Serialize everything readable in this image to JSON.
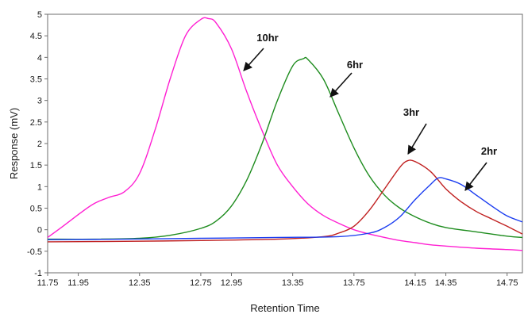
{
  "chart_data": {
    "type": "line",
    "xlabel": "Retention Time",
    "ylabel": "Response (mV)",
    "xlim": [
      11.75,
      14.85
    ],
    "ylim": [
      -1,
      5
    ],
    "x_ticks": [
      "11.75",
      "11.95",
      "12.35",
      "12.75",
      "12.95",
      "13.35",
      "13.75",
      "14.15",
      "14.35",
      "14.75"
    ],
    "x_tick_values": [
      11.75,
      11.95,
      12.35,
      12.75,
      12.95,
      13.35,
      13.75,
      14.15,
      14.35,
      14.75
    ],
    "y_ticks": [
      "-1",
      "-0.5",
      "0",
      "0.5",
      "1",
      "1.5",
      "2",
      "2.5",
      "3",
      "3.5",
      "4",
      "4.5",
      "5"
    ],
    "y_tick_values": [
      -1,
      -0.5,
      0,
      0.5,
      1,
      1.5,
      2,
      2.5,
      3,
      3.5,
      4,
      4.5,
      5
    ],
    "grid": false,
    "series": [
      {
        "name": "10hr",
        "color": "#ff1fd2",
        "x": [
          11.75,
          11.85,
          11.95,
          12.05,
          12.15,
          12.25,
          12.35,
          12.45,
          12.55,
          12.65,
          12.75,
          12.8,
          12.85,
          12.95,
          13.05,
          13.15,
          13.25,
          13.35,
          13.45,
          13.55,
          13.65,
          13.75,
          13.85,
          13.95,
          14.05,
          14.15,
          14.25,
          14.35,
          14.55,
          14.75,
          14.85
        ],
        "y": [
          -0.18,
          0.08,
          0.35,
          0.6,
          0.75,
          0.88,
          1.3,
          2.3,
          3.5,
          4.5,
          4.88,
          4.9,
          4.8,
          4.2,
          3.2,
          2.3,
          1.5,
          1.0,
          0.6,
          0.33,
          0.15,
          0.0,
          -0.1,
          -0.18,
          -0.25,
          -0.3,
          -0.35,
          -0.38,
          -0.43,
          -0.46,
          -0.48
        ]
      },
      {
        "name": "6hr",
        "color": "#1e8c1e",
        "x": [
          11.75,
          12.05,
          12.35,
          12.55,
          12.75,
          12.85,
          12.95,
          13.05,
          13.15,
          13.25,
          13.35,
          13.42,
          13.45,
          13.55,
          13.65,
          13.75,
          13.85,
          13.95,
          14.05,
          14.15,
          14.25,
          14.35,
          14.55,
          14.75,
          14.85
        ],
        "y": [
          -0.22,
          -0.22,
          -0.2,
          -0.13,
          0.03,
          0.2,
          0.55,
          1.15,
          2.0,
          3.0,
          3.8,
          3.97,
          3.95,
          3.5,
          2.7,
          1.9,
          1.25,
          0.8,
          0.5,
          0.3,
          0.15,
          0.05,
          -0.05,
          -0.15,
          -0.18
        ]
      },
      {
        "name": "3hr",
        "color": "#c02020",
        "x": [
          11.75,
          12.25,
          12.75,
          13.25,
          13.55,
          13.65,
          13.75,
          13.85,
          13.95,
          14.05,
          14.1,
          14.15,
          14.25,
          14.35,
          14.45,
          14.55,
          14.65,
          14.75,
          14.85
        ],
        "y": [
          -0.28,
          -0.27,
          -0.25,
          -0.22,
          -0.16,
          -0.08,
          0.08,
          0.45,
          0.95,
          1.45,
          1.6,
          1.58,
          1.35,
          0.95,
          0.65,
          0.42,
          0.25,
          0.08,
          -0.1
        ]
      },
      {
        "name": "2hr",
        "color": "#1a3cf0",
        "x": [
          11.75,
          12.25,
          12.75,
          13.25,
          13.65,
          13.85,
          13.95,
          14.05,
          14.15,
          14.25,
          14.3,
          14.35,
          14.45,
          14.55,
          14.65,
          14.75,
          14.85
        ],
        "y": [
          -0.23,
          -0.22,
          -0.2,
          -0.18,
          -0.16,
          -0.08,
          0.05,
          0.3,
          0.7,
          1.05,
          1.2,
          1.18,
          1.05,
          0.8,
          0.55,
          0.32,
          0.18
        ]
      }
    ],
    "annotations": [
      {
        "text": "10hr",
        "series": "10hr"
      },
      {
        "text": "6hr",
        "series": "6hr"
      },
      {
        "text": "3hr",
        "series": "3hr"
      },
      {
        "text": "2hr",
        "series": "2hr"
      }
    ]
  }
}
